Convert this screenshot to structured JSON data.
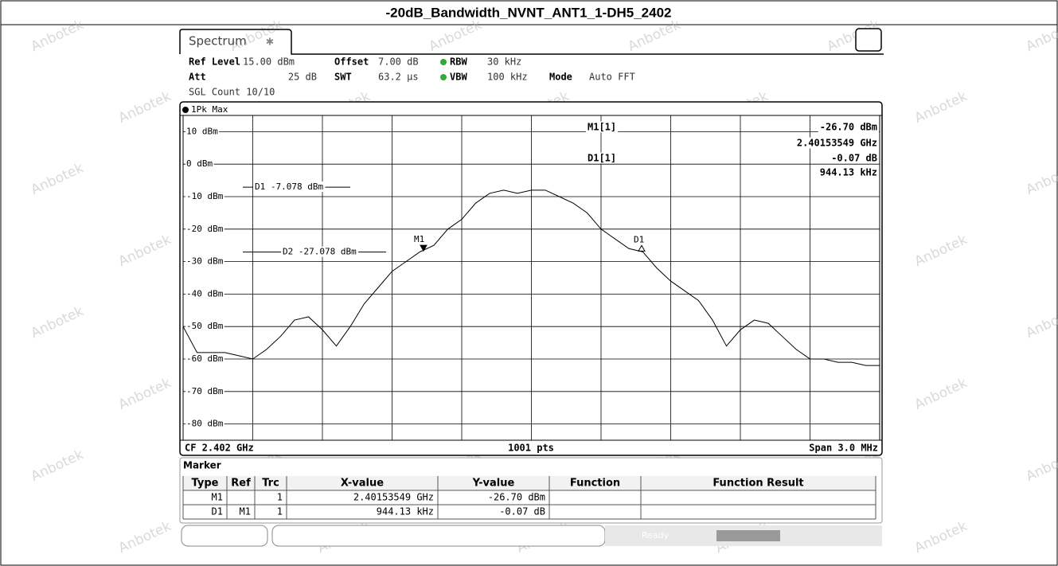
{
  "title": "-20dB_Bandwidth_NVNT_ANT1_1-DH5_2402",
  "watermark": "Anbotek",
  "tab": "Spectrum",
  "settings": [
    {
      "label": "Ref Level",
      "value": "15.00 dBm"
    },
    {
      "label": "Offset",
      "value": "7.00 dB"
    },
    {
      "label": "RBW",
      "value": "30 kHz"
    },
    {
      "label": "Att",
      "value": "25 dB"
    },
    {
      "label": "SWT",
      "value": "63.2 µs"
    },
    {
      "label": "VBW",
      "value": "100 kHz"
    },
    {
      "label": "Mode",
      "value": "Auto FFT"
    }
  ],
  "sgl_count": "SGL Count 10/10",
  "trace_label": "1Pk Max",
  "chart_data": {
    "type": "line",
    "ylim": [
      -85,
      15
    ],
    "yticks": [
      {
        "value": 10,
        "label": "10 dBm"
      },
      {
        "value": 0,
        "label": "0 dBm"
      },
      {
        "value": -10,
        "label": "-10 dBm"
      },
      {
        "value": -20,
        "label": "-20 dBm"
      },
      {
        "value": -30,
        "label": "-30 dBm"
      },
      {
        "value": -40,
        "label": "-40 dBm"
      },
      {
        "value": -50,
        "label": "-50 dBm"
      },
      {
        "value": -60,
        "label": "-60 dBm"
      },
      {
        "value": -70,
        "label": "-70 dBm"
      },
      {
        "value": -80,
        "label": "-80 dBm"
      }
    ],
    "grid": true,
    "color": "#000000",
    "values": [
      -50,
      -58,
      -58,
      -58,
      -59,
      -60,
      -57,
      -53,
      -48,
      -47,
      -51,
      -56,
      -50,
      -43,
      -38,
      -33,
      -30,
      -27,
      -25,
      -20,
      -17,
      -12,
      -9,
      -8,
      -9,
      -8,
      -8,
      -10,
      -12,
      -15,
      -20,
      -23,
      -26,
      -27,
      -32,
      -36,
      -39,
      -42,
      -48,
      -56,
      -51,
      -48,
      -49,
      -53,
      -57,
      -60,
      -60,
      -61,
      -61,
      -62,
      -62
    ],
    "lines": [
      {
        "label": "D1 -7.078 dBm",
        "value": -7.078
      },
      {
        "label": "D2 -27.078 dBm",
        "value": -27.078
      }
    ],
    "markers": [
      {
        "name": "M1",
        "value": -26.7
      },
      {
        "name": "D1",
        "value": -26.77
      }
    ],
    "marker_info": [
      "M1[1]",
      "-26.70 dBm",
      "2.40153549 GHz",
      "D1[1]",
      "-0.07 dB",
      "944.13 kHz"
    ],
    "footer": [
      "CF 2.402 GHz",
      "1001 pts",
      "Span 3.0 MHz"
    ]
  },
  "marker_table": {
    "title": "Marker",
    "header": [
      "Type",
      "Ref",
      "Trc",
      "X-value",
      "Y-value",
      "Function",
      "Function Result"
    ],
    "rows": [
      [
        "M1",
        "",
        "1",
        "2.40153549 GHz",
        "-26.70 dBm",
        "",
        ""
      ],
      [
        "D1",
        "M1",
        "1",
        "944.13 kHz",
        "-0.07 dB",
        "",
        ""
      ]
    ]
  },
  "status": "Ready"
}
